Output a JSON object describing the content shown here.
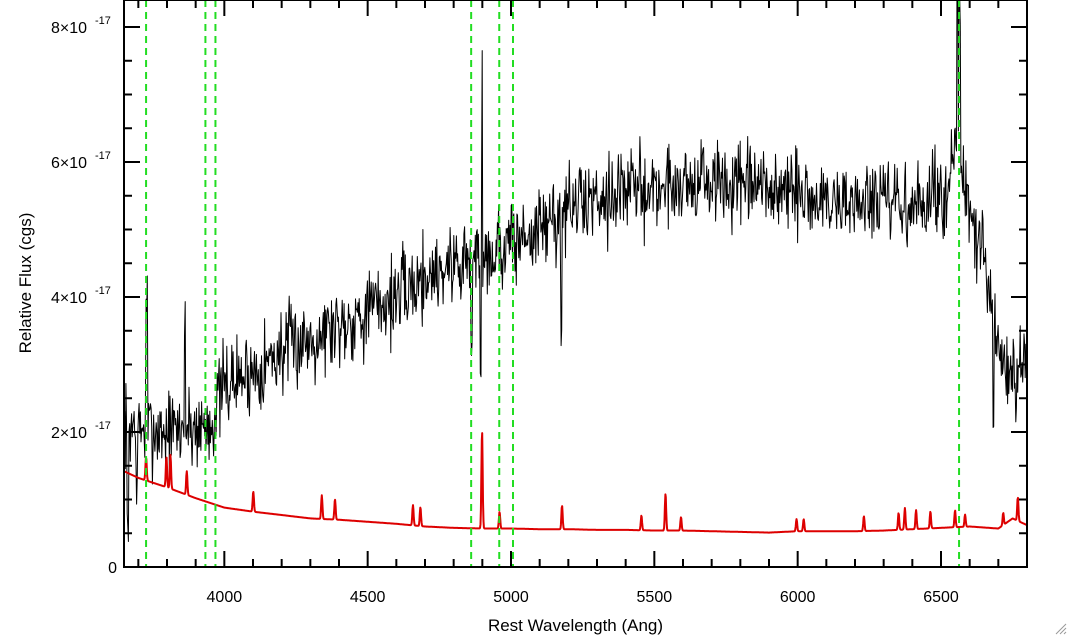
{
  "chart_data": {
    "type": "line",
    "xlabel": "Rest Wavelength (Ang)",
    "ylabel": "Relative Flux (cgs)",
    "xlim": [
      3650,
      6800
    ],
    "ylim": [
      0,
      8.4
    ],
    "y_multiplier": "×10^-17",
    "x_ticks": [
      {
        "value": 4000,
        "label": "4000"
      },
      {
        "value": 4500,
        "label": "4500"
      },
      {
        "value": 5000,
        "label": "5000"
      },
      {
        "value": 5500,
        "label": "5500"
      },
      {
        "value": 6000,
        "label": "6000"
      },
      {
        "value": 6500,
        "label": "6500"
      }
    ],
    "y_ticks": [
      {
        "value": 0,
        "mant": "0",
        "exp": ""
      },
      {
        "value": 2,
        "mant": "2×10",
        "exp": "-17"
      },
      {
        "value": 4,
        "mant": "4×10",
        "exp": "-17"
      },
      {
        "value": 6,
        "mant": "6×10",
        "exp": "-17"
      },
      {
        "value": 8,
        "mant": "8×10",
        "exp": "-17"
      }
    ],
    "grid": false,
    "legend": "none",
    "series": [
      {
        "color": "#000000",
        "style": "noisy",
        "seed": 7,
        "noise_sigma": 0.45,
        "continuum": [
          [
            3650,
            2.1
          ],
          [
            3800,
            2.0
          ],
          [
            3950,
            2.1
          ],
          [
            4000,
            2.7
          ],
          [
            4100,
            2.9
          ],
          [
            4200,
            3.2
          ],
          [
            4300,
            3.4
          ],
          [
            4400,
            3.6
          ],
          [
            4500,
            3.8
          ],
          [
            4600,
            4.0
          ],
          [
            4700,
            4.3
          ],
          [
            4800,
            4.5
          ],
          [
            4900,
            4.6
          ],
          [
            5000,
            4.8
          ],
          [
            5100,
            5.0
          ],
          [
            5200,
            5.3
          ],
          [
            5300,
            5.5
          ],
          [
            5400,
            5.6
          ],
          [
            5500,
            5.6
          ],
          [
            5600,
            5.7
          ],
          [
            5700,
            5.7
          ],
          [
            5800,
            5.6
          ],
          [
            5900,
            5.6
          ],
          [
            6000,
            5.5
          ],
          [
            6100,
            5.4
          ],
          [
            6200,
            5.4
          ],
          [
            6300,
            5.4
          ],
          [
            6400,
            5.3
          ],
          [
            6500,
            5.5
          ],
          [
            6560,
            6.2
          ],
          [
            6600,
            5.2
          ],
          [
            6650,
            4.5
          ],
          [
            6700,
            3.2
          ],
          [
            6750,
            2.7
          ],
          [
            6800,
            2.9
          ]
        ],
        "features": [
          {
            "x": 4898,
            "amp": 3.4
          },
          {
            "x": 4895,
            "amp": -1.6
          },
          {
            "x": 5176,
            "amp": -1.7
          },
          {
            "x": 3729,
            "amp": 1.8
          },
          {
            "x": 3863,
            "amp": 1.8
          },
          {
            "x": 4862,
            "amp": -1.3
          },
          {
            "x": 6558,
            "amp": 2.6
          },
          {
            "x": 6565,
            "amp": 2.2
          },
          {
            "x": 6683,
            "amp": -1.8
          },
          {
            "x": 3663,
            "amp": -1.6
          },
          {
            "x": 3695,
            "amp": -1.2
          }
        ]
      },
      {
        "color": "#dd0000",
        "style": "smooth",
        "continuum": [
          [
            3650,
            1.42
          ],
          [
            3700,
            1.32
          ],
          [
            3800,
            1.18
          ],
          [
            3900,
            1.02
          ],
          [
            4000,
            0.88
          ],
          [
            4100,
            0.82
          ],
          [
            4200,
            0.77
          ],
          [
            4300,
            0.72
          ],
          [
            4400,
            0.7
          ],
          [
            4500,
            0.67
          ],
          [
            4600,
            0.64
          ],
          [
            4700,
            0.6
          ],
          [
            4800,
            0.58
          ],
          [
            4900,
            0.57
          ],
          [
            5000,
            0.57
          ],
          [
            5100,
            0.56
          ],
          [
            5200,
            0.56
          ],
          [
            5300,
            0.55
          ],
          [
            5400,
            0.55
          ],
          [
            5500,
            0.54
          ],
          [
            5600,
            0.54
          ],
          [
            5700,
            0.53
          ],
          [
            5800,
            0.52
          ],
          [
            5900,
            0.51
          ],
          [
            6000,
            0.53
          ],
          [
            6100,
            0.53
          ],
          [
            6200,
            0.53
          ],
          [
            6300,
            0.54
          ],
          [
            6400,
            0.56
          ],
          [
            6500,
            0.58
          ],
          [
            6600,
            0.6
          ],
          [
            6700,
            0.57
          ],
          [
            6750,
            0.72
          ],
          [
            6800,
            0.62
          ]
        ],
        "lines": [
          {
            "x": 3727,
            "amp": 0.35
          },
          {
            "x": 3798,
            "amp": 0.45
          },
          {
            "x": 3812,
            "amp": 0.5
          },
          {
            "x": 3869,
            "amp": 0.35
          },
          {
            "x": 4101,
            "amp": 0.3
          },
          {
            "x": 4340,
            "amp": 0.35
          },
          {
            "x": 4386,
            "amp": 0.3
          },
          {
            "x": 4658,
            "amp": 0.3
          },
          {
            "x": 4684,
            "amp": 0.28
          },
          {
            "x": 4899,
            "amp": 1.45
          },
          {
            "x": 4960,
            "amp": 0.25
          },
          {
            "x": 5178,
            "amp": 0.35
          },
          {
            "x": 5455,
            "amp": 0.22
          },
          {
            "x": 5539,
            "amp": 0.55
          },
          {
            "x": 5593,
            "amp": 0.2
          },
          {
            "x": 5996,
            "amp": 0.18
          },
          {
            "x": 6021,
            "amp": 0.18
          },
          {
            "x": 6231,
            "amp": 0.22
          },
          {
            "x": 6352,
            "amp": 0.25
          },
          {
            "x": 6374,
            "amp": 0.32
          },
          {
            "x": 6413,
            "amp": 0.28
          },
          {
            "x": 6463,
            "amp": 0.25
          },
          {
            "x": 6549,
            "amp": 0.25
          },
          {
            "x": 6584,
            "amp": 0.18
          },
          {
            "x": 6717,
            "amp": 0.18
          },
          {
            "x": 6768,
            "amp": 0.35
          }
        ]
      }
    ],
    "vertical_lines": {
      "color": "#22dd22",
      "style": "dashed",
      "x": [
        3727,
        3934,
        3969,
        4861,
        4959,
        5007,
        6563
      ]
    }
  }
}
